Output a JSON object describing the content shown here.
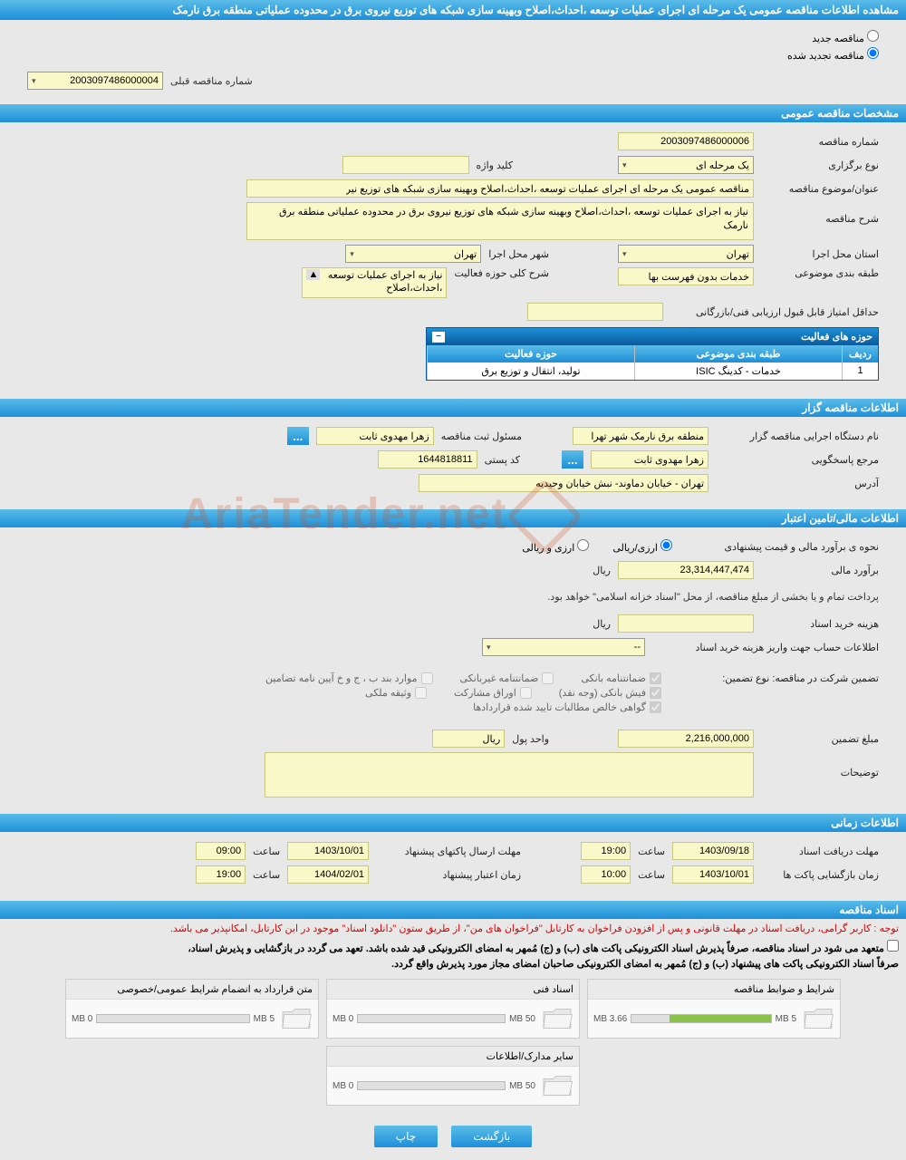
{
  "header": {
    "title": "مشاهده اطلاعات مناقصه عمومی یک مرحله ای اجرای عملیات توسعه ،احداث،اصلاح وبهینه سازی شبکه های توزیع نیروی برق در محدوده عملیاتی منطقه برق نارمک"
  },
  "radios": {
    "new_label": "مناقصه جدید",
    "renewed_label": "مناقصه تجدید شده",
    "selected": "renewed"
  },
  "prev_tender": {
    "label": "شماره مناقصه قبلی",
    "value": "2003097486000004"
  },
  "sections": {
    "general": "مشخصات مناقصه عمومی",
    "holder": "اطلاعات مناقصه گزار",
    "financial": "اطلاعات مالی/تامین اعتبار",
    "time": "اطلاعات زمانی",
    "docs": "اسناد مناقصه"
  },
  "general": {
    "tender_no_label": "شماره مناقصه",
    "tender_no": "2003097486000006",
    "hold_type_label": "نوع برگزاری",
    "hold_type": "یک مرحله ای",
    "keyword_label": "کلید واژه",
    "keyword": "",
    "subject_label": "عنوان/موضوع مناقصه",
    "subject": "مناقصه عمومی یک مرحله ای اجرای عملیات توسعه ،احداث،اصلاح وبهینه سازی شبکه های توزیع نیر",
    "desc_label": "شرح مناقصه",
    "desc": "نیاز به اجرای عملیات توسعه ،احداث،اصلاح وبهینه سازی شبکه های توزیع نیروی برق در محدوده عملیاتی منطقه برق نارمک",
    "province_label": "استان محل اجرا",
    "province": "تهران",
    "city_label": "شهر محل اجرا",
    "city": "تهران",
    "class_label": "طبقه بندی موضوعی",
    "class": "خدمات بدون فهرست بها",
    "scope_label": "شرح کلی حوزه فعالیت",
    "scope": "نیاز به اجرای عملیات توسعه ،احداث،اصلاح",
    "min_score_label": "حداقل امتیاز قابل قبول ارزیابی فنی/بازرگانی",
    "min_score": ""
  },
  "activity_table": {
    "title": "حوزه های فعالیت",
    "cols": {
      "row": "ردیف",
      "class": "طبقه بندی موضوعی",
      "scope": "حوزه فعالیت"
    },
    "rows": [
      {
        "n": "1",
        "class": "خدمات - کدینگ ISIC",
        "scope": "تولید، انتقال و توزیع برق"
      }
    ]
  },
  "holder": {
    "org_label": "نام دستگاه اجرایی مناقصه گزار",
    "org": "منطقه برق نارمک شهر تهرا",
    "reg_label": "مسئول ثبت مناقصه",
    "reg": "زهرا مهدوی ثابت",
    "ref_label": "مرجع پاسخگویی",
    "ref": "زهرا مهدوی ثابت",
    "postal_label": "کد پستی",
    "postal": "1644818811",
    "addr_label": "آدرس",
    "addr": "تهران - خیابان دماوند- نبش خیابان وحیدیه"
  },
  "financial": {
    "est_method_label": "نحوه ی برآورد مالی و قیمت پیشنهادی",
    "opt1_label": "ارزی/ریالی",
    "opt2_label": "ارزی و ریالی",
    "estimate_label": "برآورد مالی",
    "estimate": "23,314,447,474",
    "currency": "ریال",
    "treasury_note": "پرداخت تمام و یا بخشی از مبلغ مناقصه، از محل \"اسناد خزانه اسلامی\" خواهد بود.",
    "doc_cost_label": "هزینه خرید اسناد",
    "doc_cost": "",
    "account_label": "اطلاعات حساب جهت واریز هزینه خرید اسناد",
    "account": "--"
  },
  "guarantee": {
    "header_label": "تضمین شرکت در مناقصه:   نوع تضمین:",
    "types": {
      "bank": "ضمانتنامه بانکی",
      "nonbank": "ضمانتنامه غیربانکی",
      "bylaw": "موارد بند ب ، ج و خ آیین نامه تضامین",
      "cash": "فیش بانکی (وجه نقد)",
      "bonds": "اوراق مشارکت",
      "property": "وثیقه ملکی",
      "claims": "گواهی خالص مطالبات تایید شده قراردادها"
    },
    "checked": {
      "bank": true,
      "nonbank": false,
      "bylaw": false,
      "cash": true,
      "bonds": false,
      "property": false,
      "claims": true
    },
    "amount_label": "مبلغ تضمین",
    "amount": "2,216,000,000",
    "unit_label": "واحد پول",
    "unit": "ریال",
    "remarks_label": "توضیحات",
    "remarks": ""
  },
  "time": {
    "receive_label": "مهلت دریافت اسناد",
    "receive_date": "1403/09/18",
    "receive_time": "19:00",
    "submit_label": "مهلت ارسال پاکتهای پیشنهاد",
    "submit_date": "1403/10/01",
    "submit_time": "09:00",
    "open_label": "زمان بازگشایی پاکت ها",
    "open_date": "1403/10/01",
    "open_time": "10:00",
    "validity_label": "زمان اعتبار پیشنهاد",
    "validity_date": "1404/02/01",
    "validity_time": "19:00",
    "hour_label": "ساعت"
  },
  "docs": {
    "red_note": "توجه : کاربر گرامی، دریافت اسناد در مهلت قانونی و پس از افزودن فراخوان به کارتابل \"فراخوان های من\"، از طریق ستون \"دانلود اسناد\" موجود در این کارتابل، امکانپذیر می باشد.",
    "bold_note1": "متعهد می شود در اسناد مناقصه، صرفاً پذیرش اسناد الکترونیکی پاکت های (ب) و (ج) مُمهر به امضای الکترونیکی قید شده باشد. تعهد می گردد در بازگشایی و پذیرش اسناد،",
    "bold_note2": "صرفاً اسناد الکترونیکی پاکت های پیشنهاد (ب) و (ج) مُمهر به امضای الکترونیکی صاحبان امضای مجاز مورد پذیرش واقع گردد.",
    "cards": [
      {
        "title": "شرایط و ضوابط مناقصه",
        "used": "3.66 MB",
        "total": "5 MB",
        "pct": 73
      },
      {
        "title": "اسناد فنی",
        "used": "0 MB",
        "total": "50 MB",
        "pct": 0
      },
      {
        "title": "متن قرارداد به انضمام شرایط عمومی/خصوصی",
        "used": "0 MB",
        "total": "5 MB",
        "pct": 0
      },
      {
        "title": "سایر مدارک/اطلاعات",
        "used": "0 MB",
        "total": "50 MB",
        "pct": 0
      }
    ]
  },
  "buttons": {
    "back": "بازگشت",
    "print": "چاپ"
  },
  "watermark": "AriaTender.net",
  "colors": {
    "bar1": "#5bbce8",
    "bar2": "#1d8fd8",
    "field": "#f8f8c8"
  }
}
